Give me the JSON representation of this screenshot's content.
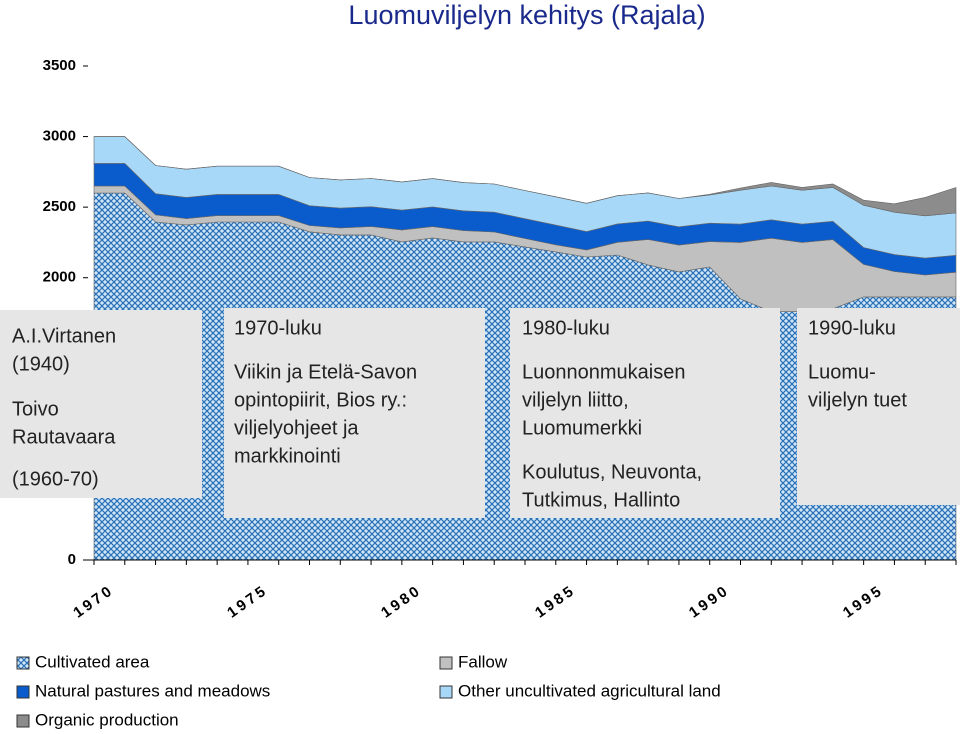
{
  "chart_data": {
    "type": "stacked-area",
    "title": "Luomuviljelyn kehitys (Rajala)",
    "x": [
      1970,
      1971,
      1972,
      1973,
      1974,
      1975,
      1976,
      1977,
      1978,
      1979,
      1980,
      1981,
      1982,
      1983,
      1984,
      1985,
      1986,
      1987,
      1988,
      1989,
      1990,
      1991,
      1992,
      1993,
      1994,
      1995,
      1996,
      1997,
      1998
    ],
    "xlim": [
      1970,
      1998
    ],
    "xticks": [
      1970,
      1975,
      1980,
      1985,
      1990,
      1995
    ],
    "ylim": [
      0,
      3500
    ],
    "yticks": [
      0,
      2000,
      2500,
      3000,
      3500
    ],
    "series": [
      {
        "name": "Cultivated area",
        "color": "#2a6fb5",
        "pattern": "crosshatch",
        "values": [
          2600,
          2600,
          2395,
          2374,
          2395,
          2395,
          2395,
          2325,
          2303,
          2303,
          2254,
          2282,
          2254,
          2254,
          2218,
          2183,
          2147,
          2161,
          2091,
          2041,
          2076,
          1850,
          1760,
          1760,
          1780,
          1864,
          1864,
          1864,
          1864
        ]
      },
      {
        "name": "Fallow",
        "color": "#c0c0c0",
        "values": [
          50,
          50,
          50,
          45,
          45,
          45,
          45,
          45,
          50,
          60,
          85,
          80,
          80,
          70,
          60,
          50,
          50,
          90,
          180,
          190,
          180,
          400,
          520,
          490,
          490,
          230,
          180,
          155,
          175
        ]
      },
      {
        "name": "Natural pastures and meadows",
        "color": "#0a5ccc",
        "values": [
          160,
          160,
          150,
          150,
          150,
          150,
          150,
          140,
          140,
          140,
          140,
          140,
          140,
          140,
          140,
          140,
          130,
          130,
          130,
          130,
          130,
          130,
          130,
          130,
          130,
          120,
          120,
          120,
          120
        ]
      },
      {
        "name": "Other uncultivated agricultural land",
        "color": "#a8d8f8",
        "values": [
          190,
          190,
          200,
          200,
          200,
          200,
          200,
          200,
          200,
          200,
          200,
          200,
          200,
          200,
          200,
          200,
          200,
          200,
          200,
          200,
          200,
          240,
          240,
          240,
          240,
          300,
          300,
          300,
          300
        ]
      },
      {
        "name": "Organic production",
        "color": "#8c8c8c",
        "values": [
          0,
          0,
          0,
          0,
          0,
          0,
          0,
          0,
          0,
          0,
          0,
          0,
          0,
          0,
          0,
          0,
          0,
          0,
          0,
          0,
          5,
          15,
          25,
          20,
          25,
          35,
          60,
          130,
          180
        ]
      }
    ],
    "annotations": [
      {
        "lines": [
          "A.I.Virtanen",
          "(1940)",
          "Toivo",
          "Rautavaara",
          "(1960-70)"
        ]
      },
      {
        "lines": [
          "1970-luku",
          "Viikin ja Etelä-Savon",
          "opintopiirit, Bios ry.:",
          "viljelyohjeet ja",
          "markkinointi"
        ]
      },
      {
        "lines": [
          "1980-luku",
          "Luonnonmukaisen",
          "viljelyn liitto,",
          "Luomumerkki",
          "Koulutus, Neuvonta,",
          "Tutkimus, Hallinto"
        ]
      },
      {
        "lines": [
          "1990-luku",
          "Luomu-",
          "viljelyn tuet"
        ]
      }
    ]
  }
}
